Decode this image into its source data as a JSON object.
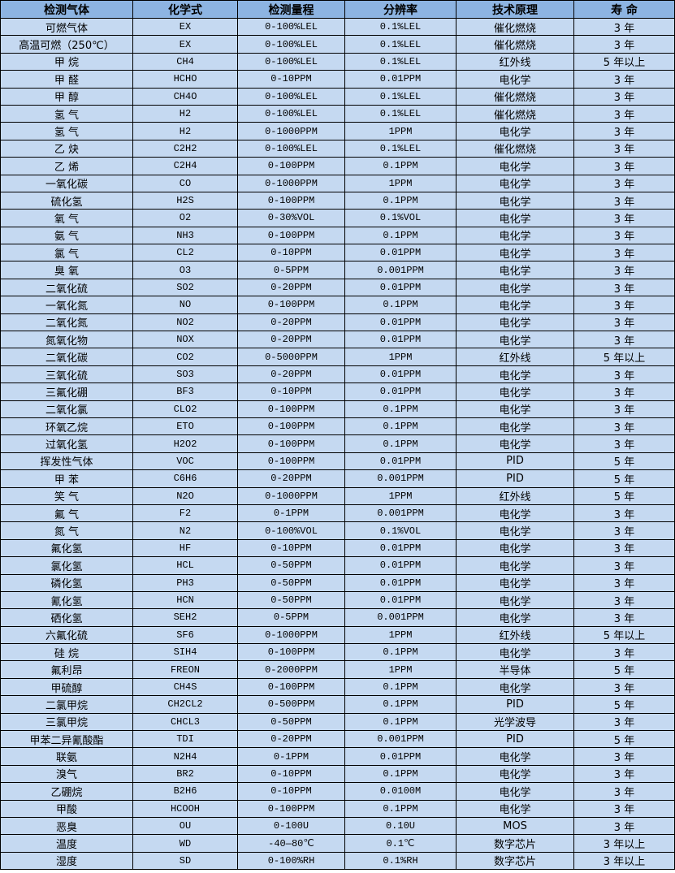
{
  "header_bg": "#8db4e2",
  "row_bg": "#c5d9f1",
  "headers": [
    "检测气体",
    "化学式",
    "检测量程",
    "分辨率",
    "技术原理",
    "寿 命"
  ],
  "rows": [
    [
      "可燃气体",
      "EX",
      "0-100%LEL",
      "0.1%LEL",
      "催化燃烧",
      "3 年"
    ],
    [
      "高温可燃（250℃）",
      "EX",
      "0-100%LEL",
      "0.1%LEL",
      "催化燃烧",
      "3 年"
    ],
    [
      "甲 烷",
      "CH4",
      "0-100%LEL",
      "0.1%LEL",
      "红外线",
      "5 年以上"
    ],
    [
      "甲 醛",
      "HCHO",
      "0-10PPM",
      "0.01PPM",
      "电化学",
      "3 年"
    ],
    [
      "甲 醇",
      "CH4O",
      "0-100%LEL",
      "0.1%LEL",
      "催化燃烧",
      "3 年"
    ],
    [
      "氢 气",
      "H2",
      "0-100%LEL",
      "0.1%LEL",
      "催化燃烧",
      "3 年"
    ],
    [
      "氢 气",
      "H2",
      "0-1000PPM",
      "1PPM",
      "电化学",
      "3 年"
    ],
    [
      "乙 炔",
      "C2H2",
      "0-100%LEL",
      "0.1%LEL",
      "催化燃烧",
      "3 年"
    ],
    [
      "乙 烯",
      "C2H4",
      "0-100PPM",
      "0.1PPM",
      "电化学",
      "3 年"
    ],
    [
      "一氧化碳",
      "CO",
      "0-1000PPM",
      "1PPM",
      "电化学",
      "3 年"
    ],
    [
      "硫化氢",
      "H2S",
      "0-100PPM",
      "0.1PPM",
      "电化学",
      "3 年"
    ],
    [
      "氧 气",
      "O2",
      "0-30%VOL",
      "0.1%VOL",
      "电化学",
      "3 年"
    ],
    [
      "氨 气",
      "NH3",
      "0-100PPM",
      "0.1PPM",
      "电化学",
      "3 年"
    ],
    [
      "氯 气",
      "CL2",
      "0-10PPM",
      "0.01PPM",
      "电化学",
      "3 年"
    ],
    [
      "臭 氧",
      "O3",
      "0-5PPM",
      "0.001PPM",
      "电化学",
      "3 年"
    ],
    [
      "二氧化硫",
      "SO2",
      "0-20PPM",
      "0.01PPM",
      "电化学",
      "3 年"
    ],
    [
      "一氧化氮",
      "NO",
      "0-100PPM",
      "0.1PPM",
      "电化学",
      "3 年"
    ],
    [
      "二氧化氮",
      "NO2",
      "0-20PPM",
      "0.01PPM",
      "电化学",
      "3 年"
    ],
    [
      "氮氧化物",
      "NOX",
      "0-20PPM",
      "0.01PPM",
      "电化学",
      "3 年"
    ],
    [
      "二氧化碳",
      "CO2",
      "0-5000PPM",
      "1PPM",
      "红外线",
      "5 年以上"
    ],
    [
      "三氧化硫",
      "SO3",
      "0-20PPM",
      "0.01PPM",
      "电化学",
      "3 年"
    ],
    [
      "三氟化硼",
      "BF3",
      "0-10PPM",
      "0.01PPM",
      "电化学",
      "3 年"
    ],
    [
      "二氧化氯",
      "CLO2",
      "0-100PPM",
      "0.1PPM",
      "电化学",
      "3 年"
    ],
    [
      "环氧乙烷",
      "ETO",
      "0-100PPM",
      "0.1PPM",
      "电化学",
      "3 年"
    ],
    [
      "过氧化氢",
      "H2O2",
      "0-100PPM",
      "0.1PPM",
      "电化学",
      "3 年"
    ],
    [
      "挥发性气体",
      "VOC",
      "0-100PPM",
      "0.01PPM",
      "PID",
      "5 年"
    ],
    [
      "甲 苯",
      "C6H6",
      "0-20PPM",
      "0.001PPM",
      "PID",
      "5 年"
    ],
    [
      "笑 气",
      "N2O",
      "0-1000PPM",
      "1PPM",
      "红外线",
      "5 年"
    ],
    [
      "氟 气",
      "F2",
      "0-1PPM",
      "0.001PPM",
      "电化学",
      "3 年"
    ],
    [
      "氮 气",
      "N2",
      "0-100%VOL",
      "0.1%VOL",
      "电化学",
      "3 年"
    ],
    [
      "氟化氢",
      "HF",
      "0-10PPM",
      "0.01PPM",
      "电化学",
      "3 年"
    ],
    [
      "氯化氢",
      "HCL",
      "0-50PPM",
      "0.01PPM",
      "电化学",
      "3 年"
    ],
    [
      "磷化氢",
      "PH3",
      "0-50PPM",
      "0.01PPM",
      "电化学",
      "3 年"
    ],
    [
      "氰化氢",
      "HCN",
      "0-50PPM",
      "0.01PPM",
      "电化学",
      "3 年"
    ],
    [
      "硒化氢",
      "SEH2",
      "0-5PPM",
      "0.001PPM",
      "电化学",
      "3 年"
    ],
    [
      "六氟化硫",
      "SF6",
      "0-1000PPM",
      "1PPM",
      "红外线",
      "5 年以上"
    ],
    [
      "硅 烷",
      "SIH4",
      "0-100PPM",
      "0.1PPM",
      "电化学",
      "3 年"
    ],
    [
      "氟利昂",
      "FREON",
      "0-2000PPM",
      "1PPM",
      "半导体",
      "5 年"
    ],
    [
      "甲硫醇",
      "CH4S",
      "0-100PPM",
      "0.1PPM",
      "电化学",
      "3 年"
    ],
    [
      "二氯甲烷",
      "CH2CL2",
      "0-500PPM",
      "0.1PPM",
      "PID",
      "5 年"
    ],
    [
      "三氯甲烷",
      "CHCL3",
      "0-50PPM",
      "0.1PPM",
      "光学波导",
      "3 年"
    ],
    [
      "甲苯二异氰酸酯",
      "TDI",
      "0-20PPM",
      "0.001PPM",
      "PID",
      "5 年"
    ],
    [
      "联氨",
      "N2H4",
      "0-1PPM",
      "0.01PPM",
      "电化学",
      "3 年"
    ],
    [
      "溴气",
      "BR2",
      "0-10PPM",
      "0.1PPM",
      "电化学",
      "3 年"
    ],
    [
      "乙硼烷",
      "B2H6",
      "0-10PPM",
      "0.0100M",
      "电化学",
      "3 年"
    ],
    [
      "甲酸",
      "HCOOH",
      "0-100PPM",
      "0.1PPM",
      "电化学",
      "3 年"
    ],
    [
      "恶臭",
      "OU",
      "0-100U",
      "0.10U",
      "MOS",
      "3 年"
    ],
    [
      "温度",
      "WD",
      "-40—80℃",
      "0.1℃",
      "数字芯片",
      "3 年以上"
    ],
    [
      "湿度",
      "SD",
      "0-100%RH",
      "0.1%RH",
      "数字芯片",
      "3 年以上"
    ]
  ]
}
